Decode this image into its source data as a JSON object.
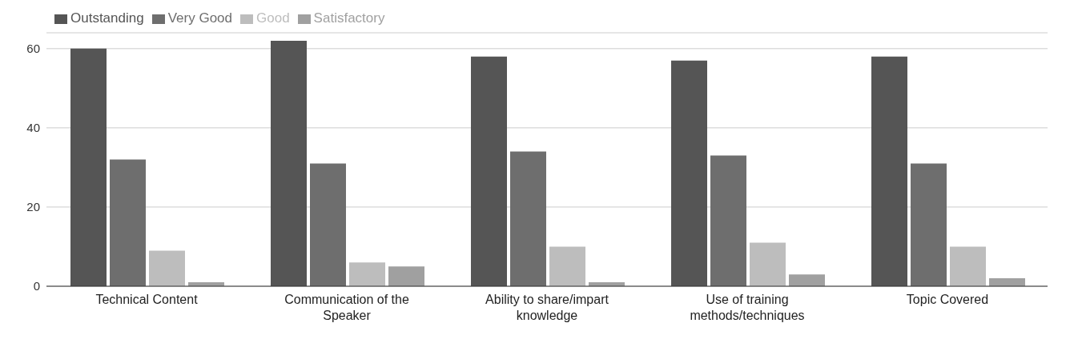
{
  "chart_data": {
    "type": "bar",
    "categories": [
      "Technical Content",
      "Communication of the Speaker",
      "Ability to share/impart knowledge",
      "Use of training methods/techniques",
      "Topic Covered"
    ],
    "series": [
      {
        "name": "Outstanding",
        "color": "#555555",
        "values": [
          60,
          62,
          58,
          57,
          58
        ]
      },
      {
        "name": "Very Good",
        "color": "#6e6e6e",
        "values": [
          32,
          31,
          34,
          33,
          31
        ]
      },
      {
        "name": "Good",
        "color": "#bdbdbd",
        "values": [
          9,
          6,
          10,
          11,
          10
        ]
      },
      {
        "name": "Satisfactory",
        "color": "#a0a0a0",
        "values": [
          1,
          5,
          1,
          3,
          2
        ]
      }
    ],
    "ylim": [
      0,
      64
    ],
    "yticks": [
      0,
      20,
      40,
      60
    ],
    "grid": "y",
    "legend": "top left"
  }
}
